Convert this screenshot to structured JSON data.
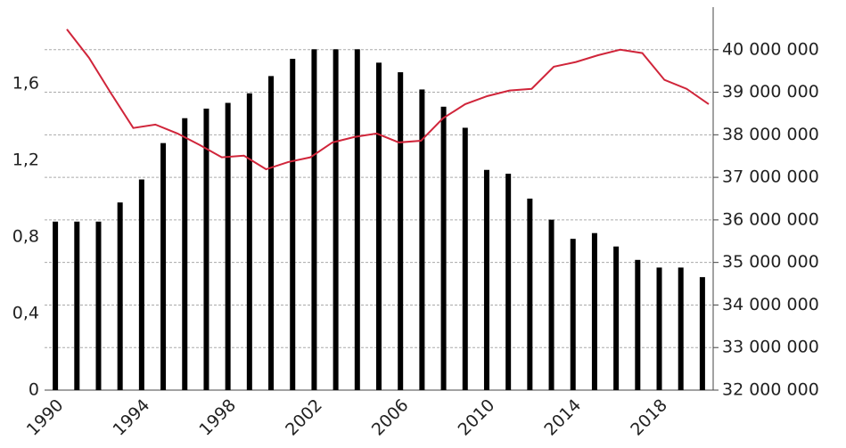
{
  "chart_data": {
    "type": "bar_line",
    "categories": [
      "1990",
      null,
      null,
      null,
      "1994",
      null,
      null,
      null,
      "1998",
      null,
      null,
      null,
      "2002",
      null,
      null,
      null,
      "2006",
      null,
      null,
      null,
      "2010",
      null,
      null,
      null,
      "2014",
      null,
      null,
      null,
      "2018",
      null,
      null
    ],
    "series": [
      {
        "type": "bar",
        "color": "#000000",
        "axis": "y",
        "values": [
          0.88,
          0.88,
          0.88,
          0.98,
          1.1,
          1.29,
          1.42,
          1.47,
          1.5,
          1.55,
          1.64,
          1.73,
          1.78,
          1.78,
          1.78,
          1.71,
          1.66,
          1.57,
          1.48,
          1.37,
          1.15,
          1.13,
          1.0,
          0.89,
          0.79,
          0.82,
          0.75,
          0.68,
          0.64,
          0.64,
          0.59
        ]
      },
      {
        "type": "line",
        "color": "#d0253a",
        "axis": "y2",
        "values": [
          40480000,
          39810000,
          38970000,
          38160000,
          38240000,
          38030000,
          37760000,
          37470000,
          37510000,
          37190000,
          37360000,
          37470000,
          37820000,
          37950000,
          38030000,
          37820000,
          37860000,
          38390000,
          38720000,
          38910000,
          39040000,
          39080000,
          39600000,
          39710000,
          39870000,
          40000000,
          39920000,
          39290000,
          39080000,
          38720000,
          null
        ]
      }
    ],
    "ylim": [
      0,
      2
    ],
    "yticks": [
      0,
      {
        "value": 0.4,
        "label": "0,4"
      },
      {
        "value": 0.8,
        "label": "0,8"
      },
      {
        "value": 1.2,
        "label": "1,2"
      },
      {
        "value": 1.6,
        "label": "1,6"
      }
    ],
    "y2lim": [
      32000000,
      41000000
    ],
    "y2ticks": [
      {
        "value": 32000000,
        "label": "32 000 000"
      },
      {
        "value": 33000000,
        "label": "33 000 000"
      },
      {
        "value": 34000000,
        "label": "34 000 000"
      },
      {
        "value": 35000000,
        "label": "35 000 000"
      },
      {
        "value": 36000000,
        "label": "36 000 000"
      },
      {
        "value": 37000000,
        "label": "37 000 000"
      },
      {
        "value": 38000000,
        "label": "38 000 000"
      },
      {
        "value": 39000000,
        "label": "39 000 000"
      },
      {
        "value": 40000000,
        "label": "40 000 000"
      }
    ],
    "grid": true
  }
}
